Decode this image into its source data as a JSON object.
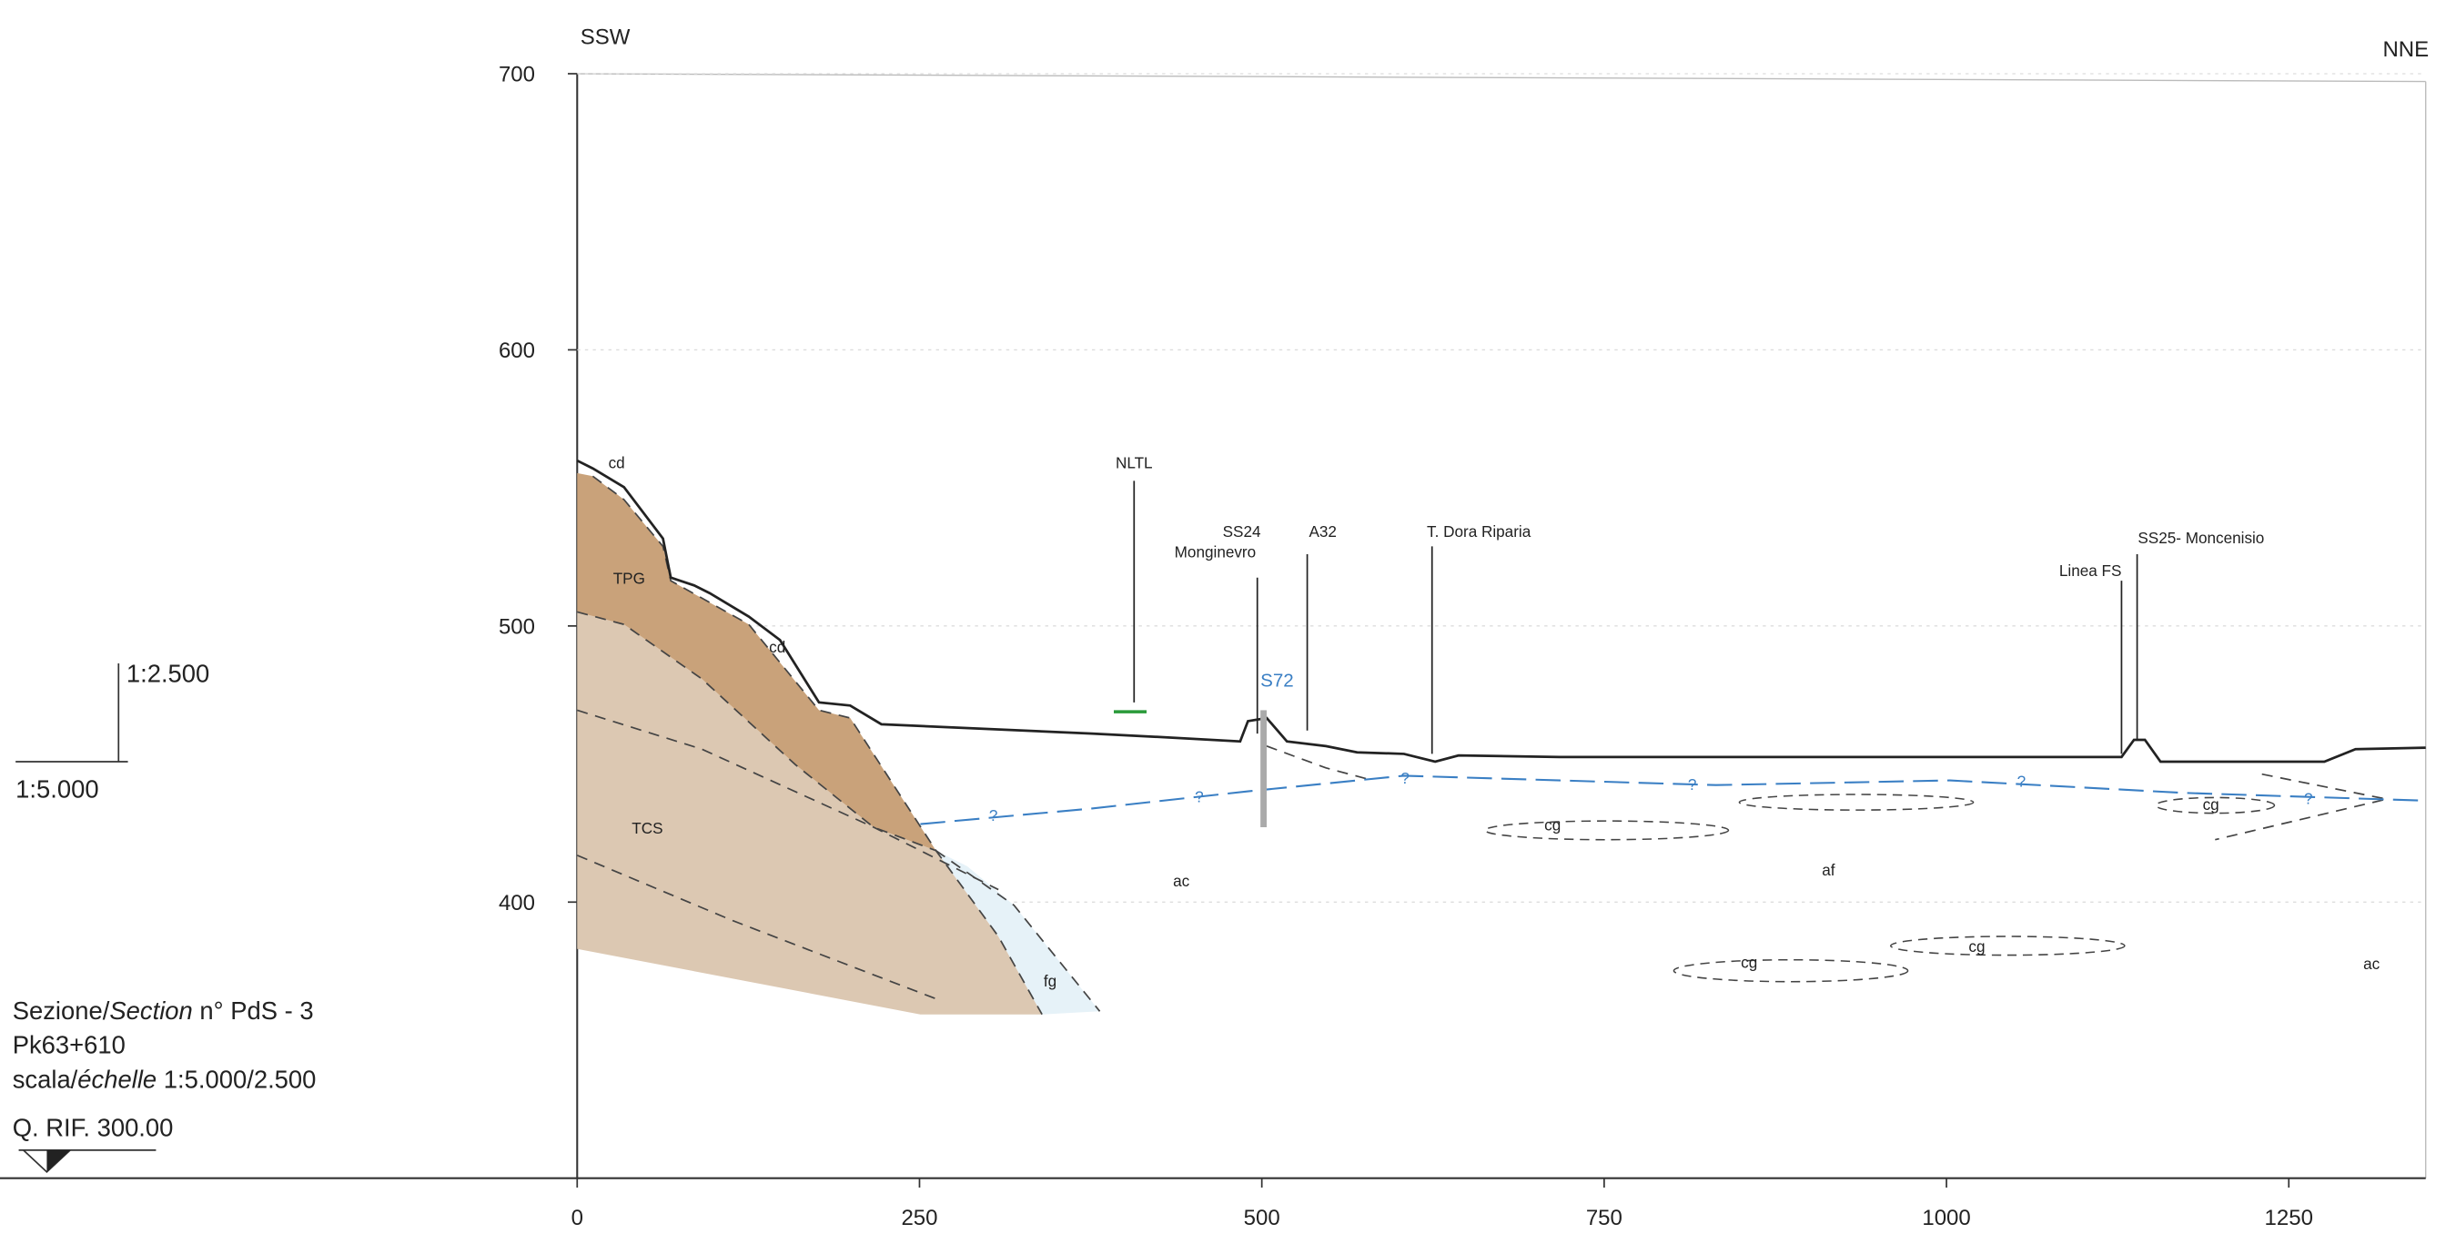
{
  "section": {
    "directions": {
      "left": "SSW",
      "right": "NNE"
    },
    "xlim": [
      0,
      1350
    ],
    "ylim": [
      300,
      700
    ],
    "xticks": [
      0,
      250,
      500,
      750,
      1000,
      1250
    ],
    "yticks": [
      400,
      500,
      600,
      700
    ],
    "units": {
      "cd": "cd",
      "tpg": "TPG",
      "tcs": "TCS",
      "fg": "fg",
      "ac": "ac",
      "af": "af",
      "cg": "cg"
    },
    "water_mark": "?",
    "features": {
      "nltl": "NLTL",
      "ss24": "SS24",
      "ss24_name": "Monginevro",
      "a32": "A32",
      "dora": "T. Dora Riparia",
      "borehole": "S72",
      "linea": "Linea FS",
      "ss25": "SS25- Moncenisio"
    },
    "scale_bar": {
      "vertical": "1:2.500",
      "horizontal": "1:5.000"
    },
    "caption": {
      "line1_a": "Sezione/",
      "line1_b": "Section",
      "line1_c": " n° PdS - 3",
      "line2": "Pk63+610",
      "line3_a": "scala/",
      "line3_b": "échelle",
      "line3_c": " 1:5.000/2.500",
      "line4": "Q. RIF. 300.00"
    }
  }
}
